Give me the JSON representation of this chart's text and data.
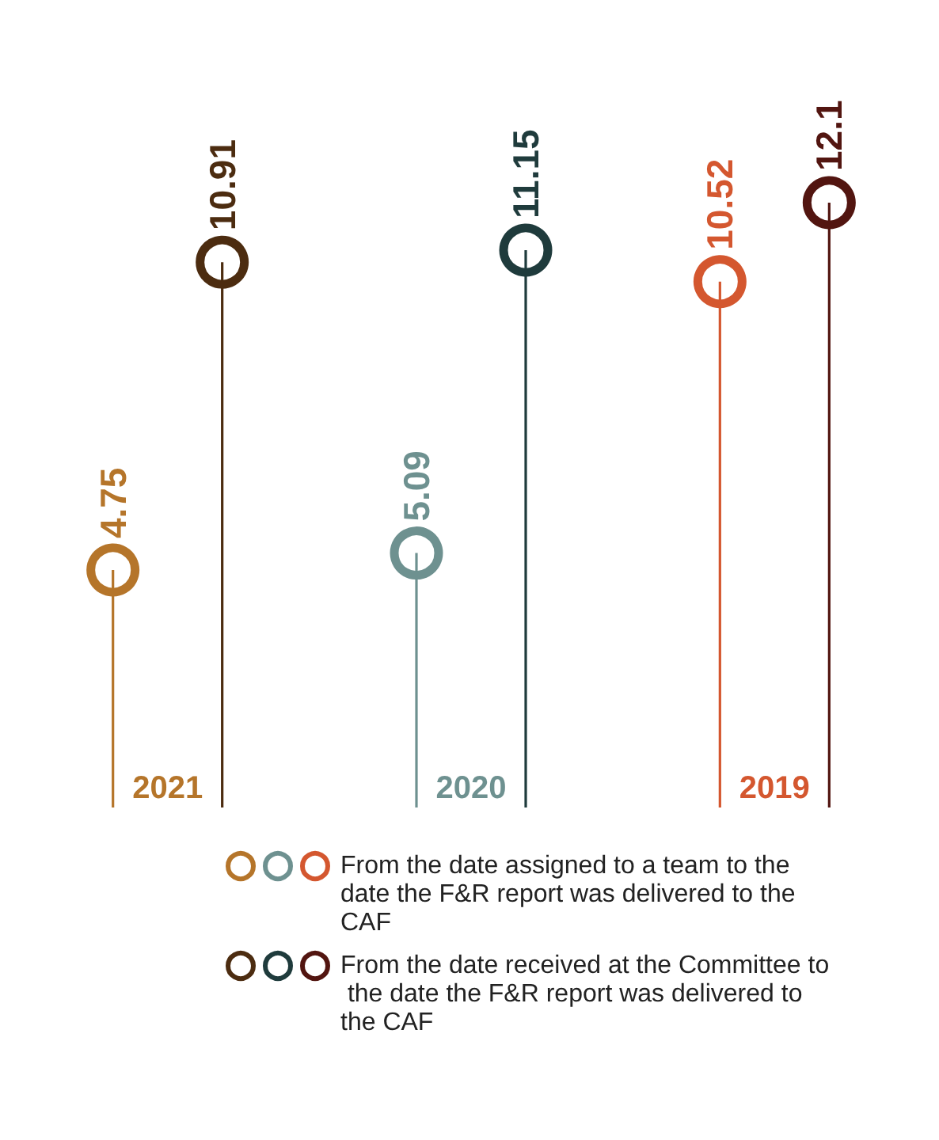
{
  "chart_data": {
    "type": "lollipop",
    "categories": [
      "2021",
      "2020",
      "2019"
    ],
    "series": [
      {
        "name": "From the date assigned to a team to the date the F&R report was delivered to the CAF",
        "colors": [
          "#b5752a",
          "#6e9190",
          "#d4572f"
        ],
        "values": [
          4.75,
          5.09,
          10.52
        ]
      },
      {
        "name": "From the date received at the Committee to the date the F&R report was delivered to the CAF",
        "colors": [
          "#4c2c10",
          "#1f3b3c",
          "#521510"
        ],
        "values": [
          10.91,
          11.15,
          12.1
        ]
      }
    ],
    "data_labels": true,
    "legend": "bottom"
  }
}
